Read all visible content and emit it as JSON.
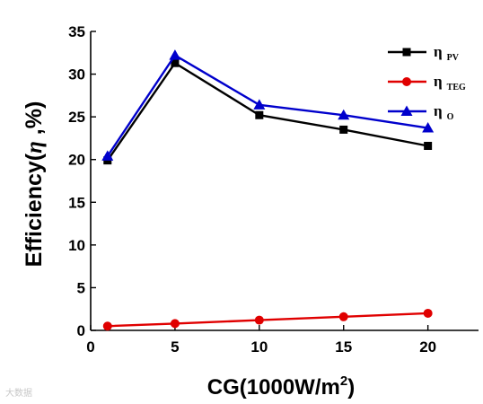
{
  "chart_data": {
    "type": "line",
    "x": [
      1,
      5,
      10,
      15,
      20
    ],
    "xlim": [
      0,
      23
    ],
    "ylim": [
      0,
      35
    ],
    "xticks": [
      "0",
      "5",
      "10",
      "15",
      "20"
    ],
    "yticks": [
      "0",
      "5",
      "10",
      "15",
      "20",
      "25",
      "30",
      "35"
    ],
    "xlabel": {
      "main": "CG(1000W/m",
      "sup": "2",
      "end": ")"
    },
    "ylabel": {
      "pre": "Efficiency(",
      "eta": "η",
      "post": " ,%)"
    },
    "legend_position": "top-right",
    "grid": false,
    "series": [
      {
        "symbol": "η",
        "sub": "PV",
        "color": "#000000",
        "marker": "square",
        "values": [
          19.9,
          31.3,
          25.2,
          23.5,
          21.6
        ]
      },
      {
        "symbol": "η",
        "sub": "TEG",
        "color": "#e00000",
        "marker": "circle",
        "values": [
          0.5,
          0.8,
          1.2,
          1.6,
          2.0
        ]
      },
      {
        "symbol": "η",
        "sub": "O",
        "color": "#0000cc",
        "marker": "triangle",
        "values": [
          20.4,
          32.2,
          26.4,
          25.2,
          23.7
        ]
      }
    ]
  },
  "watermark": "大数据"
}
